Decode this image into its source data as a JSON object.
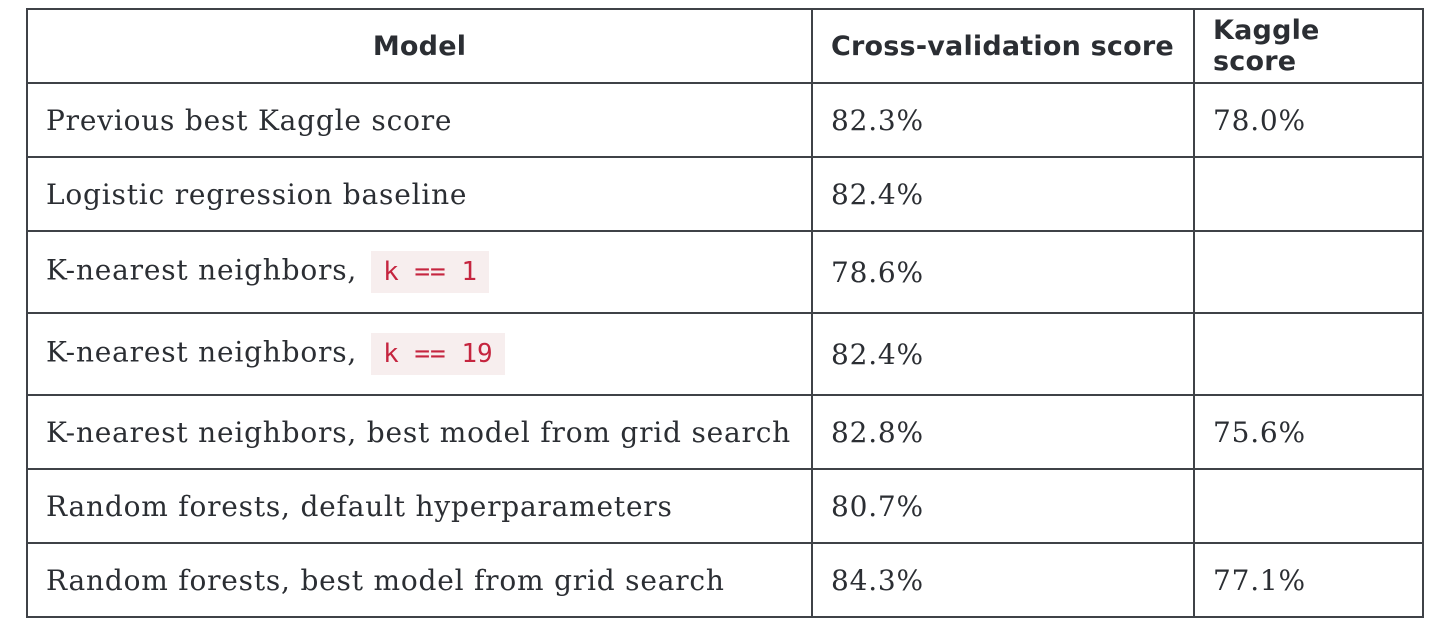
{
  "table": {
    "headers": {
      "model": "Model",
      "cv_score": "Cross-validation score",
      "kaggle_score": "Kaggle score"
    },
    "rows": [
      {
        "model": "Previous best Kaggle score",
        "code": "",
        "cv_score": "82.3%",
        "kaggle_score": "78.0%"
      },
      {
        "model": "Logistic regression baseline",
        "code": "",
        "cv_score": "82.4%",
        "kaggle_score": ""
      },
      {
        "model": "K-nearest neighbors,",
        "code": "k == 1",
        "cv_score": "78.6%",
        "kaggle_score": ""
      },
      {
        "model": "K-nearest neighbors,",
        "code": "k == 19",
        "cv_score": "82.4%",
        "kaggle_score": ""
      },
      {
        "model": "K-nearest neighbors, best model from grid search",
        "code": "",
        "cv_score": "82.8%",
        "kaggle_score": "75.6%"
      },
      {
        "model": "Random forests, default hyperparameters",
        "code": "",
        "cv_score": "80.7%",
        "kaggle_score": ""
      },
      {
        "model": "Random forests, best model from grid search",
        "code": "",
        "cv_score": "84.3%",
        "kaggle_score": "77.1%"
      }
    ]
  },
  "colors": {
    "text": "#2b2e33",
    "border": "#3f4247",
    "code_text": "#c5253f",
    "code_background": "#f7eeee"
  }
}
